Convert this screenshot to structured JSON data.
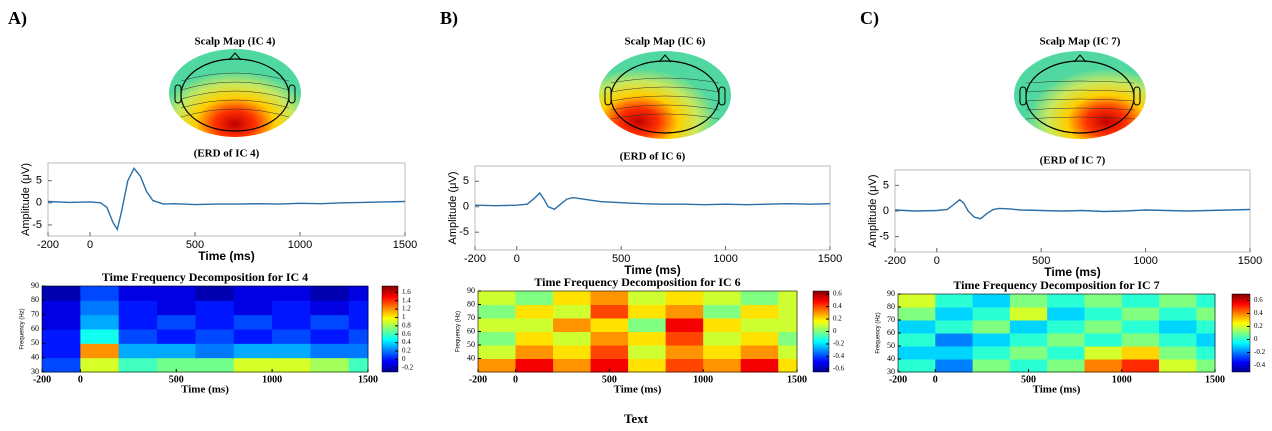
{
  "panels": [
    {
      "label": "A)",
      "scalp_title": "Scalp Map (IC 4)",
      "erp": {
        "type": "line",
        "title": "(ERD of IC 4)",
        "x_label": "Time (ms)",
        "y_label": "Amplitude (μV)",
        "color": "#2a6fa8",
        "x": [
          -200,
          -100,
          0,
          50,
          80,
          110,
          130,
          150,
          180,
          210,
          240,
          270,
          300,
          350,
          400,
          500,
          600,
          700,
          800,
          900,
          1000,
          1100,
          1200,
          1300,
          1400,
          1500
        ],
        "values": [
          0.3,
          0.1,
          0.2,
          0.0,
          -1.0,
          -4.5,
          -6.0,
          -2.0,
          5.0,
          7.8,
          6.0,
          2.5,
          0.5,
          -0.3,
          -0.2,
          -0.4,
          -0.3,
          -0.3,
          -0.2,
          -0.3,
          -0.1,
          -0.2,
          0.0,
          0.1,
          0.2,
          0.3
        ],
        "xlim": [
          -200,
          1500
        ],
        "xticks": [
          -200,
          0,
          500,
          1000,
          1500
        ],
        "ylim": [
          -7.5,
          9
        ],
        "yticks": [
          -5,
          0,
          5
        ]
      },
      "tf": {
        "type": "heatmap",
        "title": "Time Frequency Decomposition for IC 4",
        "x_label": "Time (ms)",
        "y_label": "Frequency (Hz)",
        "x_edges": [
          -200,
          0,
          200,
          400,
          600,
          800,
          1000,
          1200,
          1400,
          1500
        ],
        "y_edges": [
          30,
          40,
          50,
          60,
          70,
          80,
          90
        ],
        "z": [
          [
            0.1,
            0.9,
            0.6,
            0.7,
            0.7,
            0.9,
            0.9,
            0.8,
            0.6
          ],
          [
            0.0,
            1.2,
            0.3,
            0.3,
            0.2,
            0.3,
            0.3,
            0.2,
            0.2
          ],
          [
            0.0,
            0.5,
            0.1,
            0.0,
            0.1,
            0.0,
            0.1,
            0.0,
            0.1
          ],
          [
            -0.1,
            0.3,
            0.0,
            0.1,
            0.0,
            0.1,
            0.0,
            0.1,
            0.0
          ],
          [
            -0.1,
            0.2,
            0.0,
            -0.1,
            0.0,
            -0.1,
            0.0,
            -0.1,
            0.0
          ],
          [
            -0.2,
            0.1,
            -0.1,
            -0.1,
            -0.2,
            -0.1,
            -0.1,
            -0.2,
            -0.1
          ]
        ],
        "xlim": [
          -200,
          1500
        ],
        "xticks": [
          -200,
          0,
          500,
          1000,
          1500
        ],
        "ylim": [
          30,
          90
        ],
        "yticks": [
          30,
          40,
          50,
          60,
          70,
          80,
          90
        ],
        "clim": [
          -0.3,
          1.75
        ],
        "cticks": [
          -0.2,
          0,
          0.2,
          0.4,
          0.6,
          0.8,
          1,
          1.2,
          1.4,
          1.6
        ]
      }
    },
    {
      "label": "B)",
      "scalp_title": "Scalp Map (IC 6)",
      "erp": {
        "type": "line",
        "title": "(ERD of IC 6)",
        "x_label": "Time (ms)",
        "y_label": "Amplitude (μV)",
        "color": "#2a6fa8",
        "x": [
          -200,
          -100,
          0,
          50,
          80,
          110,
          130,
          150,
          180,
          210,
          240,
          270,
          300,
          350,
          400,
          500,
          600,
          700,
          800,
          900,
          1000,
          1100,
          1200,
          1300,
          1400,
          1500
        ],
        "values": [
          0.3,
          0.2,
          0.3,
          0.5,
          1.5,
          2.7,
          1.5,
          0.0,
          -0.5,
          0.5,
          1.5,
          1.8,
          1.6,
          1.3,
          1.0,
          0.8,
          0.6,
          0.5,
          0.5,
          0.4,
          0.5,
          0.4,
          0.5,
          0.6,
          0.5,
          0.6
        ],
        "xlim": [
          -200,
          1500
        ],
        "xticks": [
          -200,
          0,
          500,
          1000,
          1500
        ],
        "ylim": [
          -8.5,
          8
        ],
        "yticks": [
          -5,
          0,
          5
        ]
      },
      "tf": {
        "type": "heatmap",
        "title": "Time Frequency Decomposition for IC 6",
        "x_label": "Time (ms)",
        "y_label": "Frequency (Hz)",
        "x_edges": [
          -200,
          0,
          200,
          400,
          600,
          800,
          1000,
          1200,
          1400,
          1500
        ],
        "y_edges": [
          30,
          40,
          50,
          60,
          70,
          80,
          90
        ],
        "z": [
          [
            0.3,
            0.5,
            0.3,
            0.5,
            0.2,
            0.4,
            0.3,
            0.5,
            0.2
          ],
          [
            0.1,
            0.3,
            0.2,
            0.4,
            0.1,
            0.3,
            0.2,
            0.3,
            0.1
          ],
          [
            0.0,
            0.2,
            0.1,
            0.3,
            0.2,
            0.4,
            0.1,
            0.2,
            0.0
          ],
          [
            0.1,
            0.1,
            0.3,
            0.2,
            0.0,
            0.5,
            0.2,
            0.1,
            0.1
          ],
          [
            0.0,
            0.2,
            0.1,
            0.4,
            0.2,
            0.3,
            0.0,
            0.2,
            0.1
          ],
          [
            0.1,
            0.0,
            0.2,
            0.3,
            0.1,
            0.2,
            0.1,
            0.0,
            0.1
          ]
        ],
        "xlim": [
          -200,
          1500
        ],
        "xticks": [
          -200,
          0,
          500,
          1000,
          1500
        ],
        "ylim": [
          30,
          90
        ],
        "yticks": [
          40,
          50,
          60,
          70,
          80,
          90
        ],
        "clim": [
          -0.65,
          0.65
        ],
        "cticks": [
          -0.6,
          -0.4,
          -0.2,
          0,
          0.2,
          0.4,
          0.6
        ]
      }
    },
    {
      "label": "C)",
      "scalp_title": "Scalp Map (IC 7)",
      "erp": {
        "type": "line",
        "title": "(ERD of IC 7)",
        "x_label": "Time (ms)",
        "y_label": "Amplitude (μV)",
        "color": "#2a6fa8",
        "x": [
          -200,
          -100,
          0,
          50,
          80,
          110,
          130,
          150,
          180,
          210,
          240,
          270,
          300,
          350,
          400,
          500,
          600,
          700,
          800,
          900,
          1000,
          1100,
          1200,
          1300,
          1400,
          1500
        ],
        "values": [
          0.2,
          0.0,
          0.1,
          0.3,
          1.2,
          2.2,
          1.5,
          0.0,
          -1.2,
          -1.5,
          -0.5,
          0.3,
          0.5,
          0.4,
          0.2,
          0.1,
          0.0,
          0.1,
          -0.1,
          0.0,
          0.2,
          0.1,
          0.0,
          0.1,
          0.2,
          0.3
        ],
        "xlim": [
          -200,
          1500
        ],
        "xticks": [
          -200,
          0,
          500,
          1000,
          1500
        ],
        "ylim": [
          -8,
          8
        ],
        "yticks": [
          -5,
          0,
          5
        ]
      },
      "tf": {
        "type": "heatmap",
        "title": "Time Frequency Decomposition for IC 7",
        "x_label": "Time (ms)",
        "y_label": "Frequency (Hz)",
        "x_edges": [
          -200,
          0,
          200,
          400,
          600,
          800,
          1000,
          1200,
          1400,
          1500
        ],
        "y_edges": [
          30,
          40,
          50,
          60,
          70,
          80,
          90
        ],
        "z": [
          [
            0.0,
            -0.2,
            0.1,
            0.0,
            0.1,
            0.4,
            0.5,
            0.2,
            0.1
          ],
          [
            -0.1,
            -0.1,
            0.0,
            0.1,
            0.0,
            0.2,
            0.3,
            0.1,
            0.0
          ],
          [
            0.0,
            -0.2,
            -0.1,
            0.0,
            0.1,
            0.0,
            0.1,
            0.0,
            -0.1
          ],
          [
            -0.1,
            0.0,
            0.1,
            -0.1,
            0.0,
            0.1,
            0.0,
            -0.1,
            0.0
          ],
          [
            0.1,
            -0.1,
            0.0,
            0.2,
            -0.1,
            0.0,
            0.1,
            0.0,
            0.1
          ],
          [
            0.2,
            0.0,
            -0.1,
            0.1,
            0.0,
            0.1,
            0.0,
            0.1,
            0.0
          ]
        ],
        "xlim": [
          -200,
          1500
        ],
        "xticks": [
          -200,
          0,
          500,
          1000,
          1500
        ],
        "ylim": [
          30,
          90
        ],
        "yticks": [
          30,
          40,
          50,
          60,
          70,
          80,
          90
        ],
        "clim": [
          -0.5,
          0.7
        ],
        "cticks": [
          -0.4,
          -0.2,
          0,
          0.2,
          0.4,
          0.6
        ]
      }
    }
  ],
  "caption": "Text"
}
